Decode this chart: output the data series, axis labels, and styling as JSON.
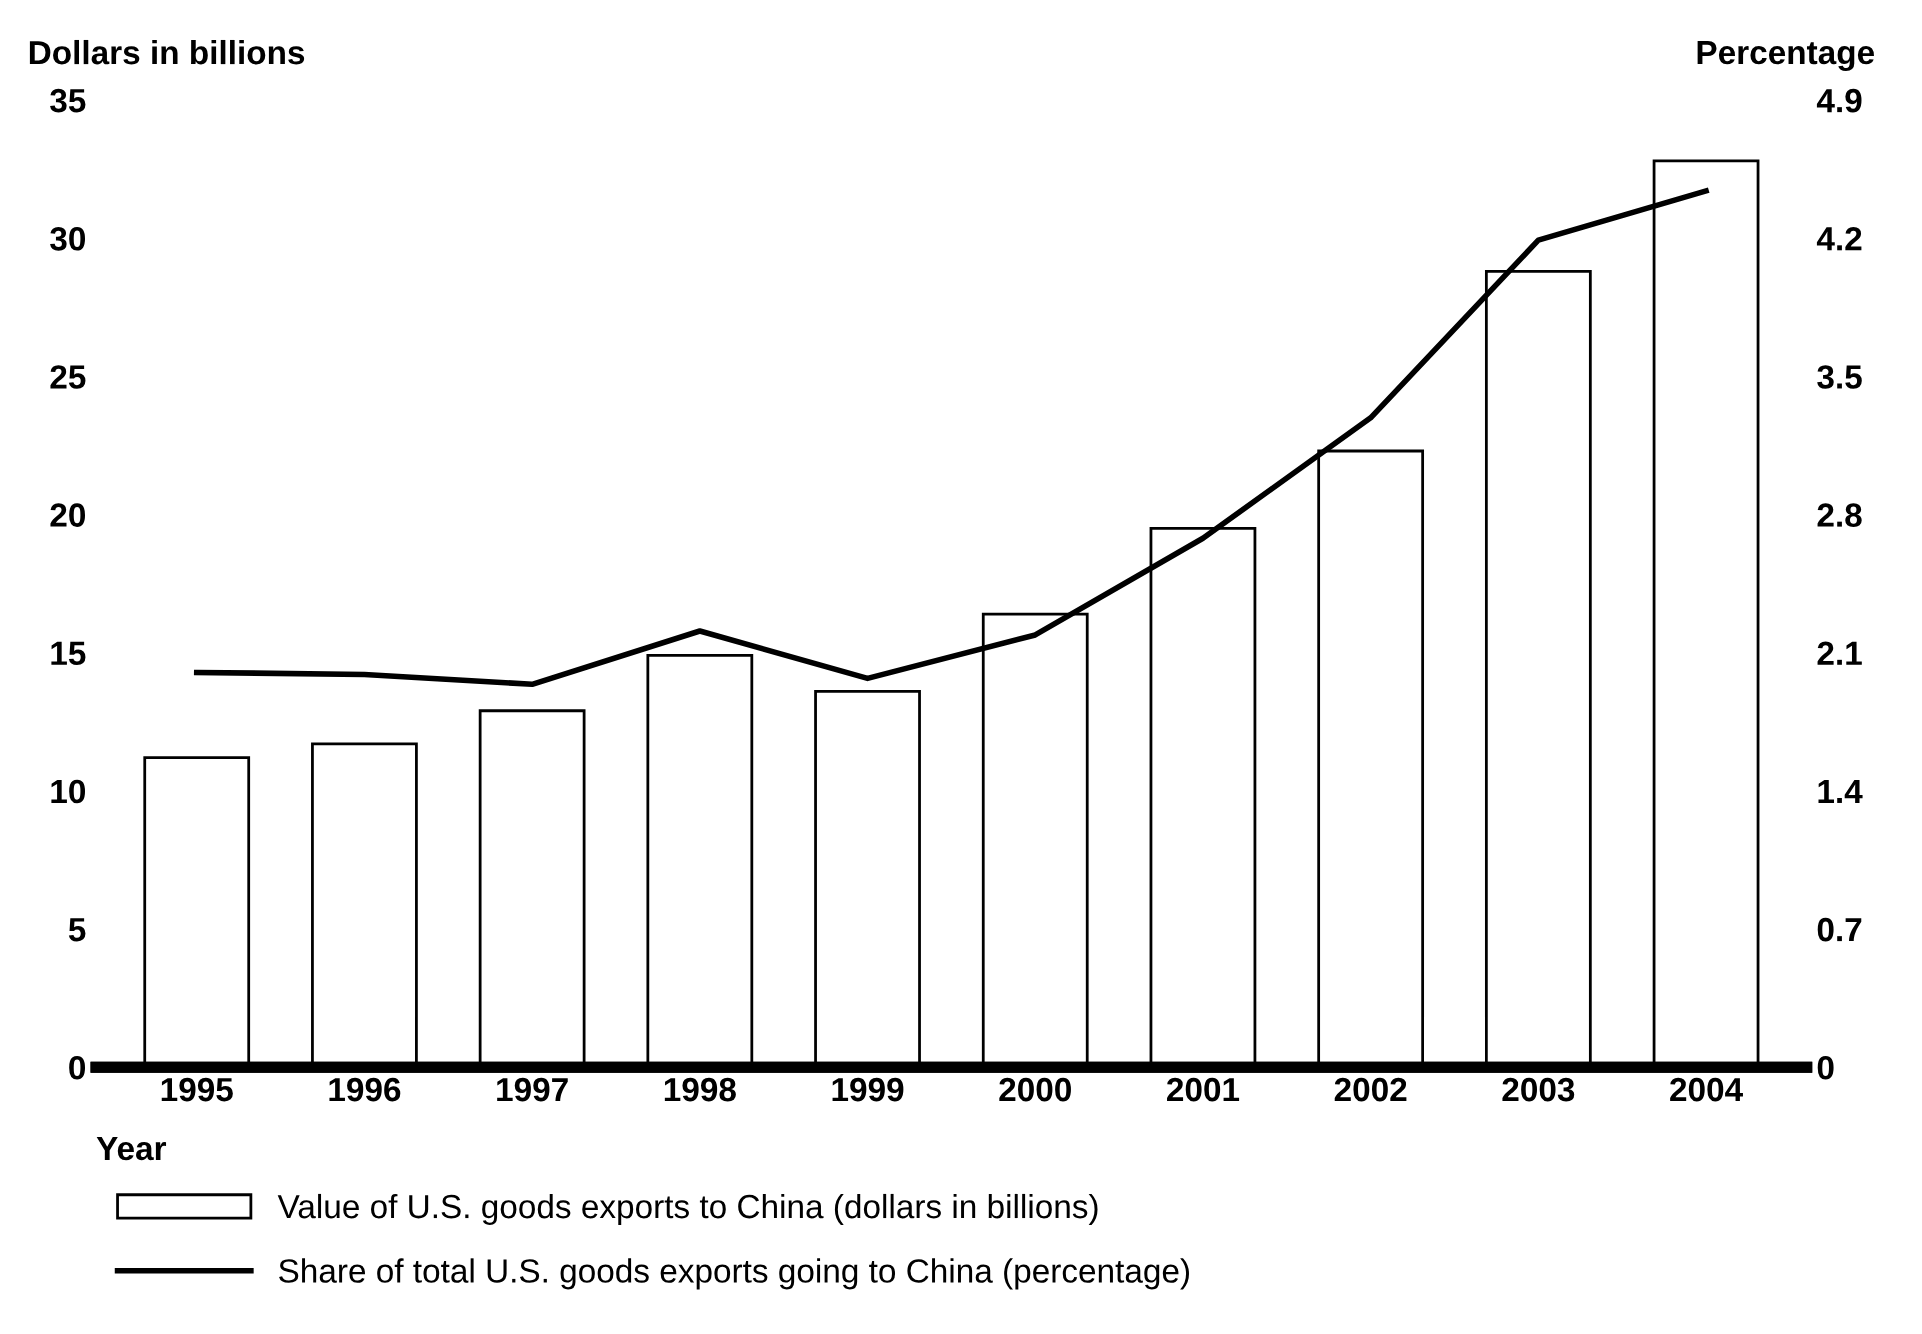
{
  "chart_data": {
    "type": "bar",
    "categories": [
      "1995",
      "1996",
      "1997",
      "1998",
      "1999",
      "2000",
      "2001",
      "2002",
      "2003",
      "2004"
    ],
    "series": [
      {
        "name": "Value of U.S. goods exports to China (dollars in billions)",
        "color": "#ffffff",
        "values": [
          11.2,
          11.7,
          12.9,
          14.9,
          13.6,
          16.4,
          19.5,
          22.3,
          28.8,
          32.8
        ]
      },
      {
        "name": "Share of total U.S. goods exports going to China (percentage)",
        "type": "line",
        "axis": "y2",
        "color": "#000000",
        "values": [
          2.0,
          1.99,
          1.94,
          2.21,
          1.97,
          2.19,
          2.68,
          3.29,
          4.19,
          4.44
        ]
      }
    ],
    "ylabel": "Dollars in billions",
    "y2label": "Percentage",
    "xlabel": "Year",
    "ylim": [
      0,
      35
    ],
    "yticks": [
      0,
      5,
      10,
      15,
      20,
      25,
      30,
      35
    ],
    "y2lim": [
      0,
      4.9
    ],
    "y2ticks": [
      0,
      0.7,
      1.4,
      2.1,
      2.8,
      3.5,
      4.2,
      4.9
    ],
    "legend": "bottom",
    "grid": false,
    "marker": "none",
    "line_style": "solid"
  }
}
